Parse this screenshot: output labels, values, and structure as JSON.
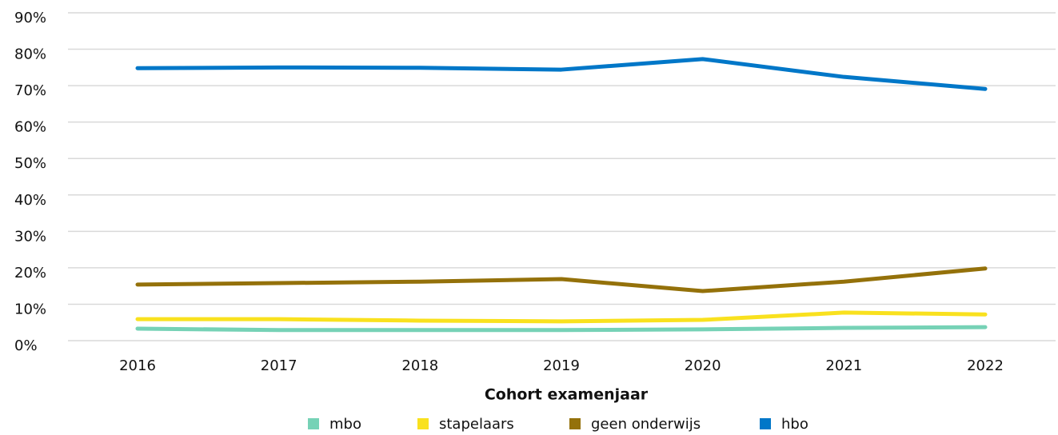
{
  "chart_data": {
    "type": "line",
    "x_label": "Cohort examenjaar",
    "categories": [
      "2016",
      "2017",
      "2018",
      "2019",
      "2020",
      "2021",
      "2022"
    ],
    "series": [
      {
        "name": "mbo",
        "color": "#76d2b6",
        "values": [
          3.3,
          2.9,
          2.9,
          2.9,
          3.1,
          3.5,
          3.7
        ]
      },
      {
        "name": "stapelaars",
        "color": "#f9e11e",
        "values": [
          5.9,
          5.9,
          5.5,
          5.3,
          5.7,
          7.7,
          7.2
        ]
      },
      {
        "name": "geen onderwijs",
        "color": "#94710a",
        "values": [
          15.4,
          15.8,
          16.2,
          16.9,
          13.6,
          16.2,
          19.8
        ]
      },
      {
        "name": "hbo",
        "color": "#0077c8",
        "values": [
          74.8,
          75.0,
          74.9,
          74.4,
          77.3,
          72.4,
          69.1
        ]
      }
    ],
    "ylim": [
      0,
      90
    ],
    "yticks": [
      {
        "value": 0,
        "label": "0%"
      },
      {
        "value": 10,
        "label": "10%"
      },
      {
        "value": 20,
        "label": "20%"
      },
      {
        "value": 30,
        "label": "30%"
      },
      {
        "value": 40,
        "label": "40%"
      },
      {
        "value": 50,
        "label": "50%"
      },
      {
        "value": 60,
        "label": "60%"
      },
      {
        "value": 70,
        "label": "70%"
      },
      {
        "value": 80,
        "label": "80%"
      },
      {
        "value": 90,
        "label": "90%"
      }
    ],
    "grid": true,
    "legend": "bottom"
  }
}
